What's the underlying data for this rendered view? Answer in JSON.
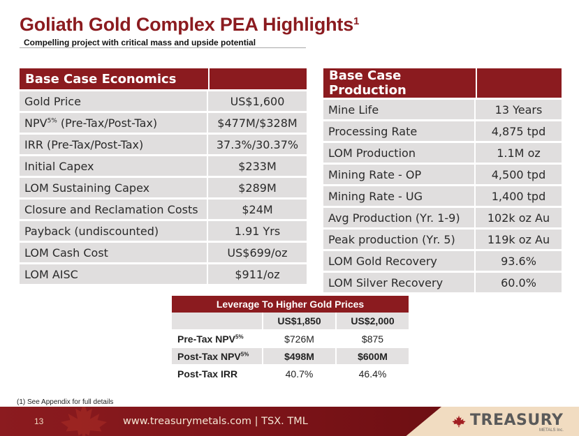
{
  "header": {
    "title": "Goliath Gold Complex PEA Highlights",
    "title_sup": "1",
    "subtitle": "Compelling project with critical mass and upside potential"
  },
  "economics": {
    "heading": "Base Case Economics",
    "rows": [
      {
        "label": "Gold Price",
        "value": "US$1,600"
      },
      {
        "label": "NPV",
        "label_sup": "5%",
        "label_rest": " (Pre-Tax/Post-Tax)",
        "value": "$477M/$328M"
      },
      {
        "label": "IRR (Pre-Tax/Post-Tax)",
        "value": "37.3%/30.37%"
      },
      {
        "label": "Initial Capex",
        "value": "$233M"
      },
      {
        "label": "LOM Sustaining Capex",
        "value": "$289M"
      },
      {
        "label": "Closure and Reclamation Costs",
        "value": "$24M"
      },
      {
        "label": "Payback (undiscounted)",
        "value": "1.91 Yrs"
      },
      {
        "label": "LOM Cash Cost",
        "value": "US$699/oz"
      },
      {
        "label": "LOM AISC",
        "value": "$911/oz"
      }
    ]
  },
  "production": {
    "heading": "Base Case Production",
    "rows": [
      {
        "label": "Mine Life",
        "value": "13 Years"
      },
      {
        "label": "Processing Rate",
        "value": "4,875 tpd"
      },
      {
        "label": "LOM Production",
        "value": "1.1M oz"
      },
      {
        "label": "Mining Rate - OP",
        "value": "4,500 tpd"
      },
      {
        "label": "Mining Rate - UG",
        "value": "1,400 tpd"
      },
      {
        "label": "Avg Production (Yr. 1-9)",
        "value": "102k oz Au"
      },
      {
        "label": "Peak production (Yr. 5)",
        "value": "119k oz Au"
      },
      {
        "label": "LOM Gold Recovery",
        "value": "93.6%"
      },
      {
        "label": "LOM Silver Recovery",
        "value": "60.0%"
      }
    ]
  },
  "leverage": {
    "title": "Leverage To Higher Gold Prices",
    "columns": [
      "US$1,850",
      "US$2,000"
    ],
    "rows": [
      {
        "label": "Pre-Tax NPV",
        "sup": "5%",
        "v1": "$726M",
        "v2": "$875"
      },
      {
        "label": "Post-Tax NPV",
        "sup": "5%",
        "v1": "$498M",
        "v2": "$600M"
      },
      {
        "label": "Post-Tax IRR",
        "sup": "",
        "v1": "40.7%",
        "v2": "46.4%"
      }
    ]
  },
  "footnote": "(1) See Appendix for full details",
  "footer": {
    "page_number": "13",
    "url_text": "www.treasurymetals.com  |  TSX. TML",
    "brand_name": "TREASURY",
    "brand_sub": "METALS Inc."
  },
  "colors": {
    "accent": "#8b1b1f",
    "row_bg": "#e0dede",
    "footer_bg": "#f1dcc1"
  }
}
